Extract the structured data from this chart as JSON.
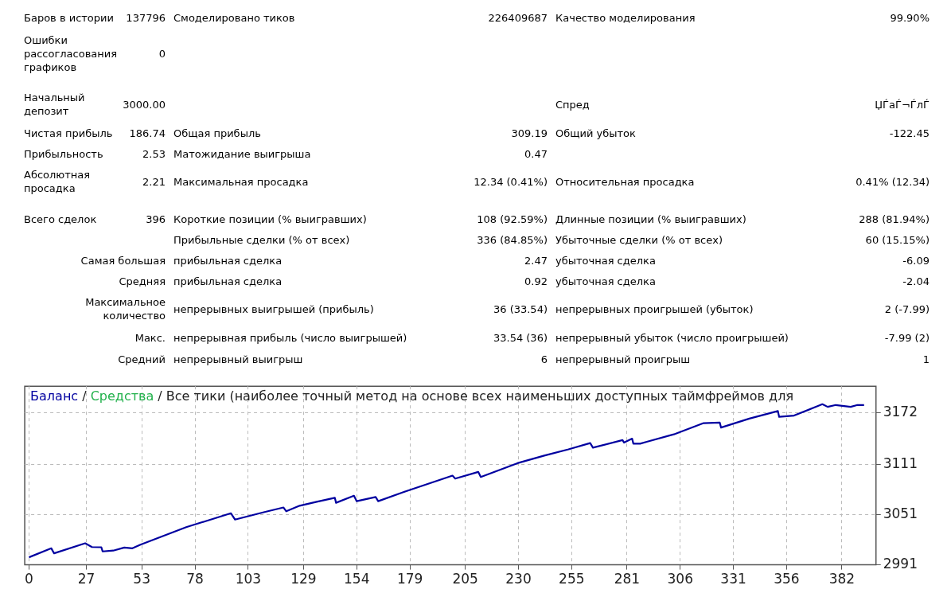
{
  "chart_data": [
    {
      "type": "other",
      "annotations": [
        "Баров в истории",
        "137796",
        "Смоделировано тиков",
        "226409687",
        "Качество моделирования",
        "99.90%",
        "Ошибки рассогласования графиков",
        "0",
        "Начальный депозит",
        "3000.00",
        "Спред",
        "ЏЃаЃ¬ЃлЃ",
        "Чистая прибыль",
        "186.74",
        "Общая прибыль",
        "309.19",
        "Общий убыток",
        "-122.45",
        "Прибыльность",
        "2.53",
        "Матожидание выигрыша",
        "0.47",
        "Абсолютная просадка",
        "2.21",
        "Максимальная просадка",
        "12.34 (0.41%)",
        "Относительная просадка",
        "0.41% (12.34)",
        "Всего сделок",
        "396",
        "Короткие позиции (% выигравших)",
        "108 (92.59%)",
        "Длинные позиции (% выигравших)",
        "288 (81.94%)",
        "Прибыльные сделки (% от всех)",
        "336 (84.85%)",
        "Убыточные сделки (% от всех)",
        "60 (15.15%)",
        "Самая большая",
        "прибыльная сделка",
        "2.47",
        "убыточная сделка",
        "-6.09",
        "Средняя",
        "прибыльная сделка",
        "0.92",
        "убыточная сделка",
        "-2.04",
        "Максимальное количество",
        "непрерывных выигрышей (прибыль)",
        "36 (33.54)",
        "непрерывных проигрышей (убыток)",
        "2 (-7.99)",
        "Макс.",
        "непрерывная прибыль (число выигрышей)",
        "33.54 (36)",
        "непрерывный убыток (число проигрышей)",
        "-7.99 (2)",
        "Средний",
        "непрерывный выигрыш",
        "6",
        "непрерывный проигрыш",
        "1"
      ]
    },
    {
      "type": "line",
      "title": "Баланс / Средства / Все тики (наиболее точный метод на основе всех наименьших доступных таймфреймов для",
      "xlim": [
        -2,
        398
      ],
      "xticks": [
        0,
        27,
        53,
        78,
        103,
        129,
        154,
        179,
        205,
        230,
        255,
        281,
        306,
        331,
        356,
        382
      ],
      "ylim": [
        2991,
        3204
      ],
      "yticks": [
        2991,
        3051,
        3111,
        3172
      ],
      "grid": true,
      "marker": "none",
      "line_style": "solid",
      "series": [
        {
          "color": "#0000a0",
          "x": [
            0,
            10.5,
            11.8,
            26.4,
            29.6,
            34,
            34.6,
            39.6,
            44.8,
            48.6,
            52.4,
            73.9,
            85.4,
            94.9,
            96.8,
            110.7,
            119.6,
            120.9,
            127.2,
            134.8,
            143.7,
            144.3,
            152.7,
            154,
            162.9,
            164.1,
            176.2,
            199,
            200.3,
            211.1,
            212.3,
            229.5,
            242.1,
            253.5,
            263.7,
            265,
            278.9,
            279.6,
            283.4,
            284,
            287.2,
            290.3,
            303,
            317,
            324.6,
            325.2,
            338.5,
            351.9,
            352.5,
            359.5,
            372.8,
            375.3,
            379.1,
            386.1,
            389.3,
            392.4
          ],
          "values": [
            3000,
            3010.7,
            3004.7,
            3016.7,
            3012.2,
            3012,
            3007,
            3008,
            3011.6,
            3010.7,
            3015,
            3036,
            3045,
            3052.5,
            3045,
            3054,
            3059.4,
            3054.9,
            3061.5,
            3066,
            3071,
            3065,
            3073.4,
            3066.9,
            3071.9,
            3066.9,
            3077.9,
            3097.4,
            3093.8,
            3101.8,
            3095.8,
            3112.2,
            3121.2,
            3128.7,
            3136.2,
            3130.8,
            3139.7,
            3136.8,
            3141.5,
            3135.5,
            3135.5,
            3137.7,
            3146.6,
            3160,
            3160.6,
            3154.7,
            3165.4,
            3174.4,
            3167.5,
            3169,
            3182.5,
            3179.4,
            3181.6,
            3179.4,
            3181.6,
            3181.6
          ]
        }
      ]
    }
  ]
}
